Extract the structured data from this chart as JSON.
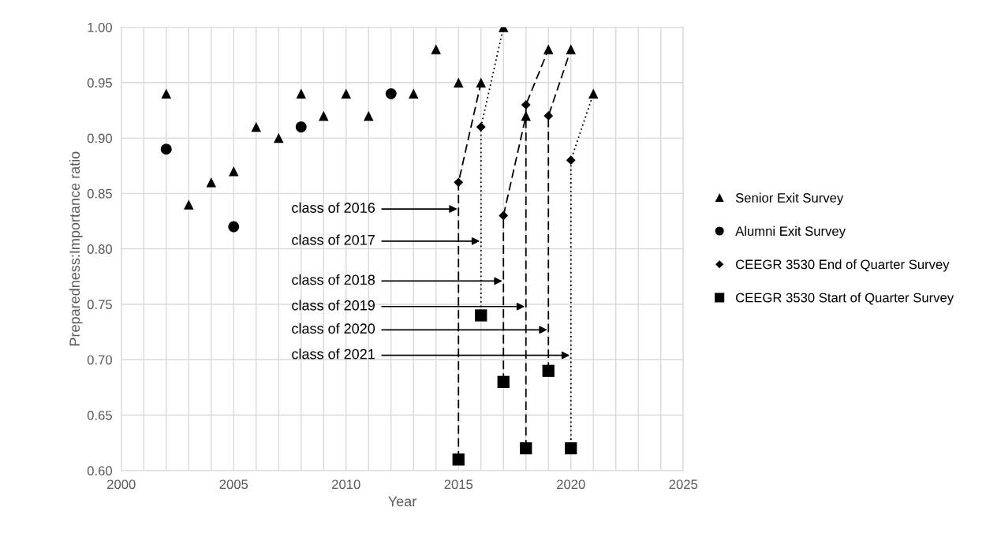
{
  "chart_data": {
    "type": "scatter",
    "xlabel": "Year",
    "ylabel": "Preparedness:Importance ratio",
    "xlim": [
      2000,
      2025
    ],
    "xticks": [
      2000,
      {
        "value": 2001,
        "label": null
      },
      {
        "value": 2002,
        "label": null
      },
      {
        "value": 2003,
        "label": null
      },
      {
        "value": 2004,
        "label": null
      },
      2005,
      {
        "value": 2006,
        "label": null
      },
      {
        "value": 2007,
        "label": null
      },
      {
        "value": 2008,
        "label": null
      },
      {
        "value": 2009,
        "label": null
      },
      2010,
      {
        "value": 2011,
        "label": null
      },
      {
        "value": 2012,
        "label": null
      },
      {
        "value": 2013,
        "label": null
      },
      {
        "value": 2014,
        "label": null
      },
      2015,
      {
        "value": 2016,
        "label": null
      },
      {
        "value": 2017,
        "label": null
      },
      {
        "value": 2018,
        "label": null
      },
      {
        "value": 2019,
        "label": null
      },
      2020,
      {
        "value": 2021,
        "label": null
      },
      {
        "value": 2022,
        "label": null
      },
      {
        "value": 2023,
        "label": null
      },
      {
        "value": 2024,
        "label": null
      },
      2025
    ],
    "ylim": [
      0.6,
      1.0
    ],
    "yticks": [
      {
        "value": 0.6,
        "label": "0.60"
      },
      {
        "value": 0.65,
        "label": "0.65"
      },
      {
        "value": 0.7,
        "label": "0.70"
      },
      {
        "value": 0.75,
        "label": "0.75"
      },
      {
        "value": 0.8,
        "label": "0.80"
      },
      {
        "value": 0.85,
        "label": "0.85"
      },
      {
        "value": 0.9,
        "label": "0.90"
      },
      {
        "value": 0.95,
        "label": "0.95"
      },
      {
        "value": 1.0,
        "label": "1.00"
      }
    ],
    "grid": true,
    "legend": "right",
    "series": [
      {
        "type": "line",
        "color": "#000000",
        "line_style": "dashed",
        "marker": "none",
        "x": [
          2015,
          2015,
          2016
        ],
        "values": [
          0.61,
          0.86,
          0.95
        ]
      },
      {
        "type": "line",
        "color": "#000000",
        "line_style": "dotted",
        "marker": "none",
        "x": [
          2016,
          2016,
          2017
        ],
        "values": [
          0.74,
          0.91,
          1.0
        ]
      },
      {
        "type": "line",
        "color": "#000000",
        "line_style": "dashed",
        "marker": "none",
        "x": [
          2017,
          2017,
          2018
        ],
        "values": [
          0.68,
          0.83,
          0.92
        ]
      },
      {
        "type": "line",
        "color": "#000000",
        "line_style": "dashed",
        "marker": "none",
        "x": [
          2018,
          2018,
          2019
        ],
        "values": [
          0.62,
          0.93,
          0.98
        ]
      },
      {
        "type": "line",
        "color": "#000000",
        "line_style": "dashed",
        "marker": "none",
        "x": [
          2019,
          2019,
          2020
        ],
        "values": [
          0.69,
          0.92,
          0.98
        ]
      },
      {
        "type": "line",
        "color": "#000000",
        "line_style": "dotted",
        "marker": "none",
        "x": [
          2020,
          2020,
          2021
        ],
        "values": [
          0.62,
          0.88,
          0.94
        ]
      },
      {
        "name": "Senior Exit Survey",
        "color": "#000000",
        "marker": "triangle",
        "x": [
          2002,
          2003,
          2004,
          2005,
          2006,
          2007,
          2008,
          2009,
          2010,
          2011,
          2013,
          2014,
          2015,
          2016,
          2017,
          2018,
          2019,
          2020,
          2021
        ],
        "values": [
          0.94,
          0.84,
          0.86,
          0.87,
          0.91,
          0.9,
          0.94,
          0.92,
          0.94,
          0.92,
          0.94,
          0.98,
          0.95,
          0.95,
          1.0,
          0.92,
          0.98,
          0.98,
          0.94
        ]
      },
      {
        "name": "Alumni Exit Survey",
        "color": "#000000",
        "marker": "circle",
        "x": [
          2002,
          2005,
          2008,
          2012
        ],
        "values": [
          0.89,
          0.82,
          0.91,
          0.94
        ]
      },
      {
        "name": "CEEGR 3530 End of Quarter Survey",
        "color": "#000000",
        "marker": "diamond",
        "x": [
          2015,
          2016,
          2017,
          2018,
          2019,
          2020
        ],
        "values": [
          0.86,
          0.91,
          0.83,
          0.93,
          0.92,
          0.88
        ]
      },
      {
        "name": "CEEGR 3530 Start of Quarter Survey",
        "color": "#000000",
        "marker": "square",
        "x": [
          2015,
          2016,
          2017,
          2018,
          2019,
          2020
        ],
        "values": [
          0.61,
          0.74,
          0.68,
          0.62,
          0.69,
          0.62
        ]
      }
    ],
    "annotations": [
      {
        "text": "class of 2016",
        "x": 2014.95,
        "y": 0.836
      },
      {
        "text": "class of 2017",
        "x": 2015.95,
        "y": 0.807
      },
      {
        "text": "class of 2018",
        "x": 2016.95,
        "y": 0.771
      },
      {
        "text": "class of 2019",
        "x": 2017.95,
        "y": 0.748
      },
      {
        "text": "class of 2020",
        "x": 2018.95,
        "y": 0.727
      },
      {
        "text": "class of 2021",
        "x": 2019.95,
        "y": 0.704
      }
    ]
  }
}
